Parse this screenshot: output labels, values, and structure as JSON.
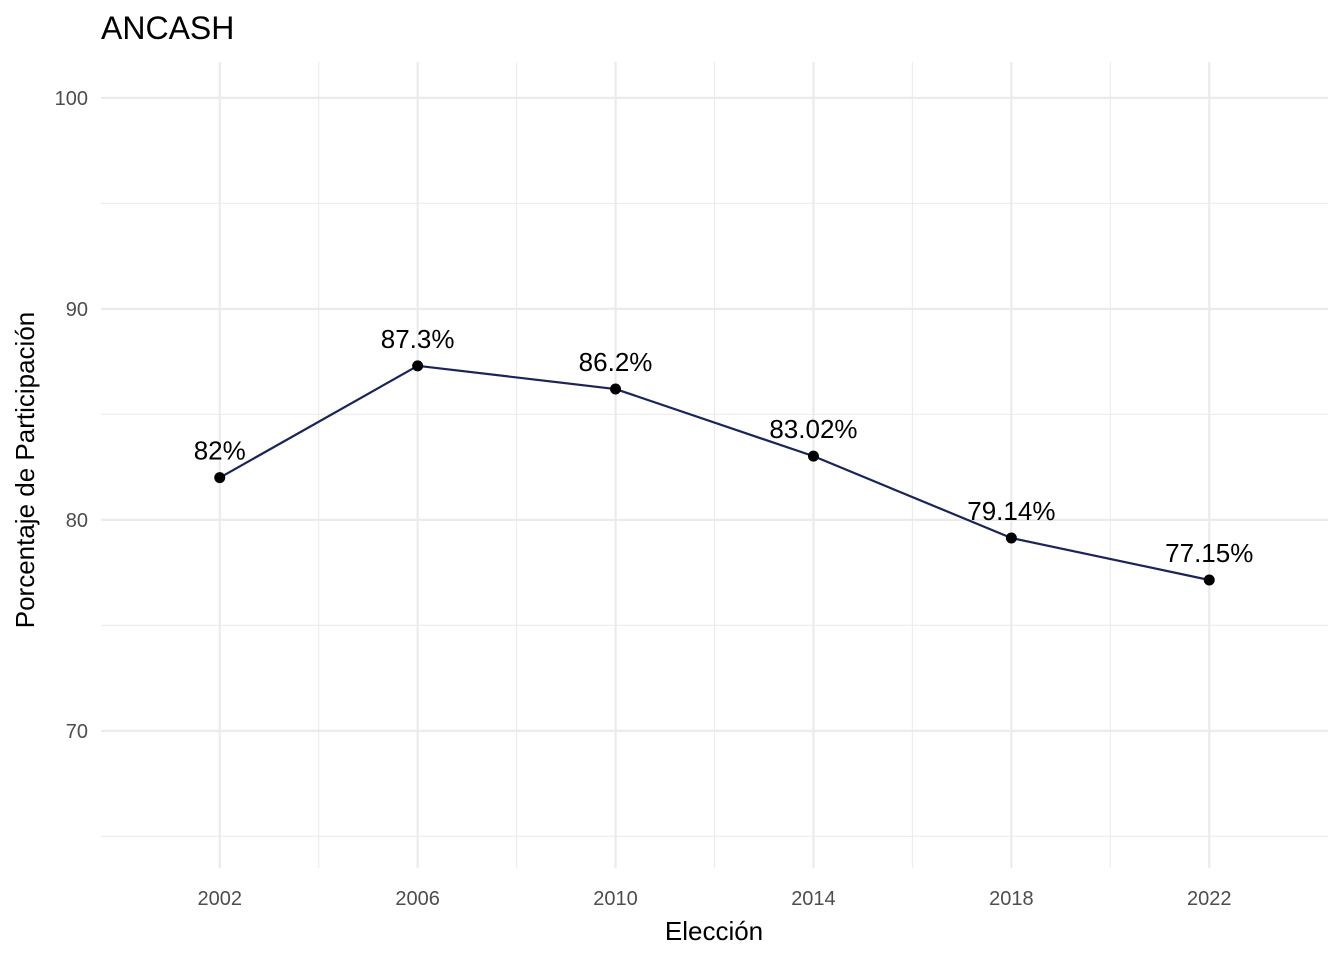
{
  "chart_data": {
    "type": "line",
    "title": "ANCASH",
    "xlabel": "Elección",
    "ylabel": "Porcentaje de Participación",
    "x": [
      2002,
      2006,
      2010,
      2014,
      2018,
      2022
    ],
    "series": [
      {
        "values": [
          82,
          87.3,
          86.2,
          83.02,
          79.14,
          77.15
        ],
        "labels": [
          "82%",
          "87.3%",
          "86.2%",
          "83.02%",
          "79.14%",
          "77.15%"
        ]
      }
    ],
    "x_ticks": [
      "2002",
      "2006",
      "2010",
      "2014",
      "2018",
      "2022"
    ],
    "y_ticks": [
      "70",
      "80",
      "90",
      "100"
    ],
    "xlim": [
      1999.6,
      2024.4
    ],
    "ylim": [
      63.5,
      101.7
    ],
    "grid": true,
    "legend": "none",
    "line_color": "#1a2459",
    "point_color": "#000000",
    "grid_color": "#ebebeb"
  }
}
